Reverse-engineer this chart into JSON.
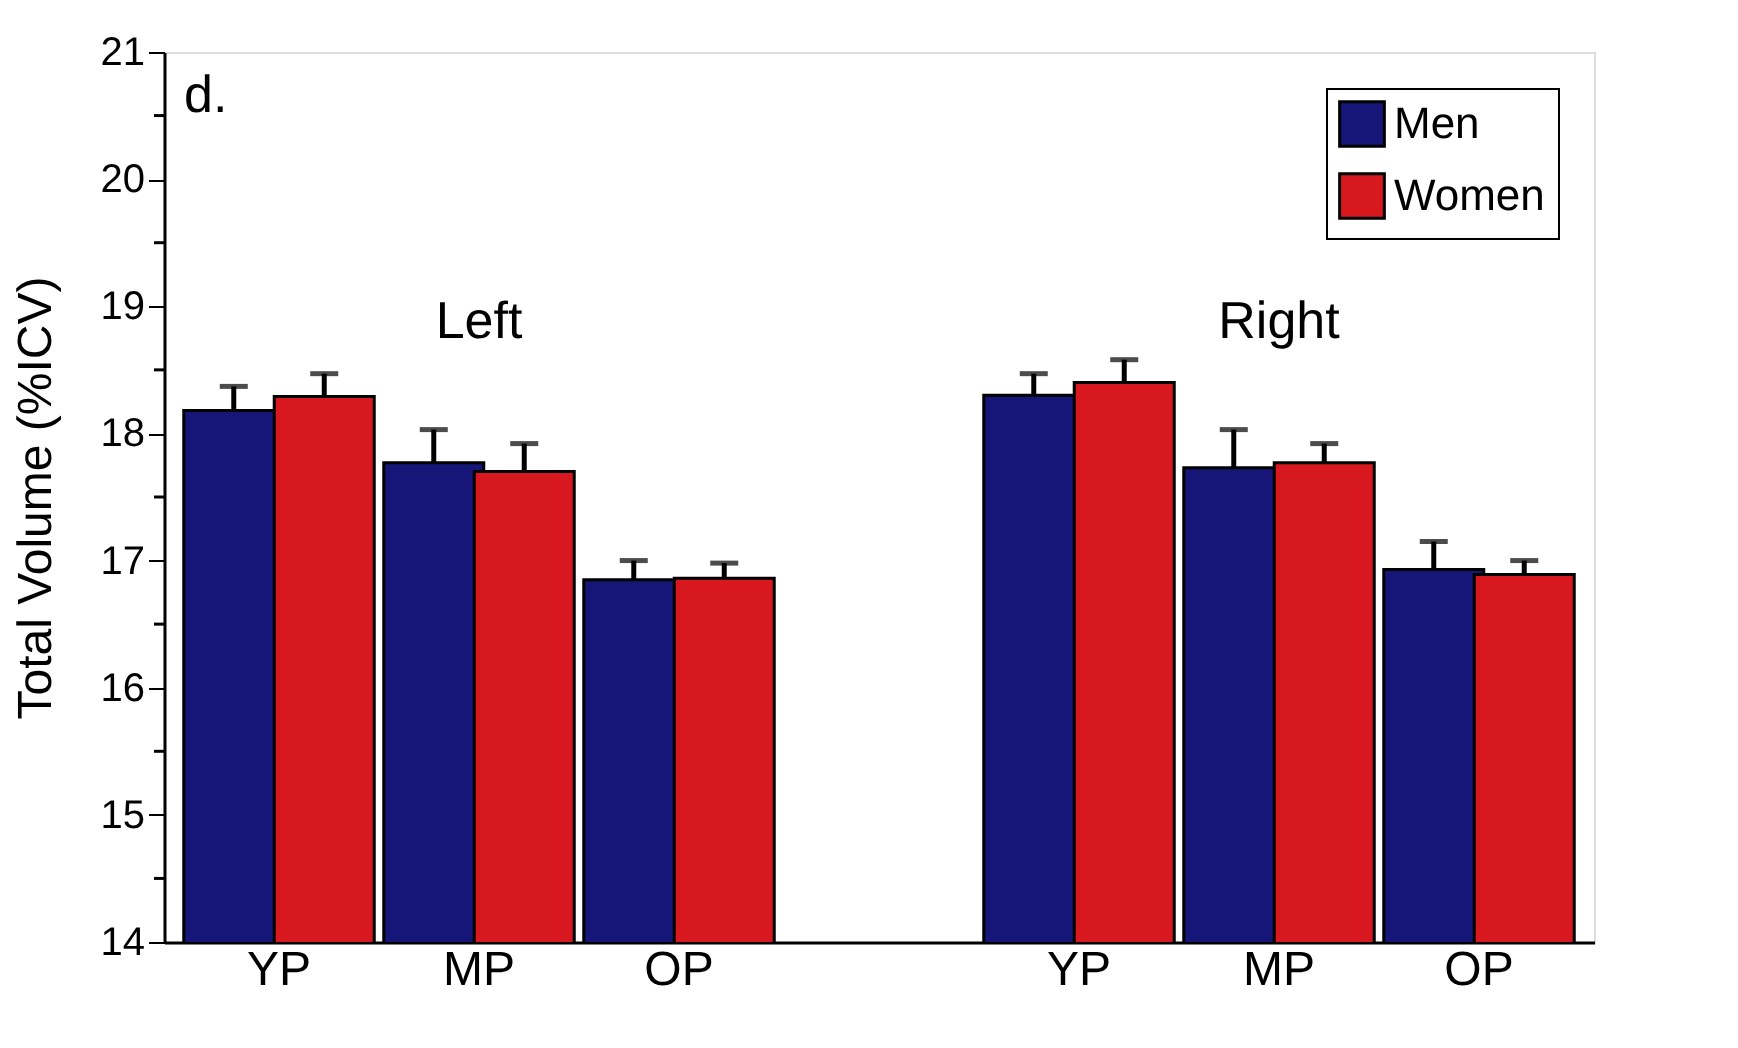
{
  "chart_data": {
    "type": "bar",
    "ylabel": "Total Volume (%ICV)",
    "categories": [
      "YP",
      "MP",
      "OP",
      null,
      "YP",
      "MP",
      "OP"
    ],
    "series": [
      {
        "name": "Men",
        "color": "#161578",
        "values": [
          18.18,
          17.77,
          16.85,
          null,
          18.3,
          17.73,
          16.93
        ],
        "errors": [
          [
            18.18,
            18.37
          ],
          [
            17.77,
            18.03
          ],
          [
            16.85,
            17.0
          ],
          null,
          [
            18.3,
            18.47
          ],
          [
            17.73,
            18.03
          ],
          [
            16.93,
            17.15
          ]
        ]
      },
      {
        "name": "Women",
        "color": "#d7191f",
        "values": [
          18.29,
          17.7,
          16.86,
          null,
          18.4,
          17.77,
          16.89
        ],
        "errors": [
          [
            18.29,
            18.47
          ],
          [
            17.7,
            17.92
          ],
          [
            16.86,
            16.98
          ],
          null,
          [
            18.4,
            18.58
          ],
          [
            17.77,
            17.92
          ],
          [
            16.89,
            17.0
          ]
        ]
      }
    ],
    "ylim": [
      14,
      21
    ],
    "yticks": [
      14,
      {
        "value": 14.5,
        "label": null
      },
      15,
      {
        "value": 15.5,
        "label": null
      },
      16,
      {
        "value": 16.5,
        "label": null
      },
      17,
      {
        "value": 17.5,
        "label": null
      },
      18,
      {
        "value": 18.5,
        "label": null
      },
      19,
      {
        "value": 19.5,
        "label": null
      },
      20,
      {
        "value": 20.5,
        "label": null
      },
      21
    ],
    "annotations": [
      "d.",
      "Left",
      "Right"
    ],
    "legend": "top right",
    "grid": false
  }
}
